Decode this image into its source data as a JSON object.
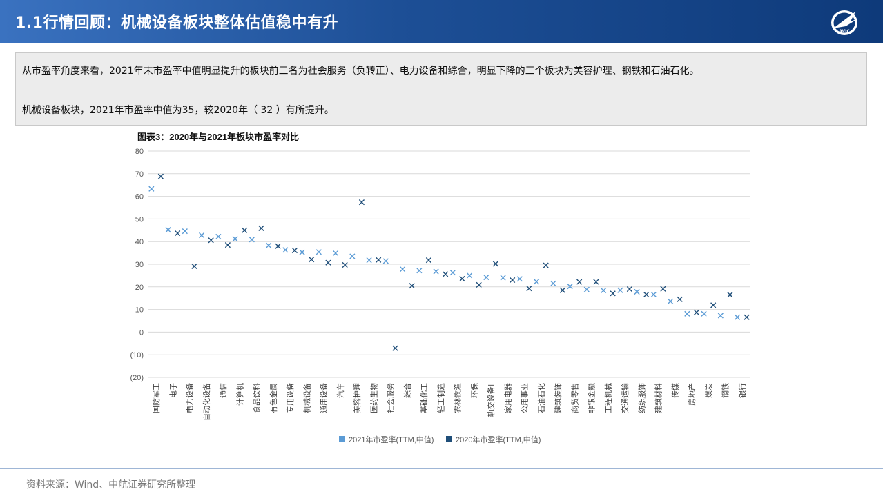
{
  "header": {
    "title": "1.1行情回顾：机械设备板块整体估值稳中有升",
    "logo_icon": "avic-plane-logo-icon",
    "logo_text": "AVIC"
  },
  "summary": {
    "line1": "从市盈率角度来看，2021年末市盈率中值明显提升的板块前三名为社会服务（负转正）、电力设备和综合，明显下降的三个板块为美容护理、钢铁和石油石化。",
    "line2": "机械设备板块，2021年市盈率中值为35，较2020年（ 32 ）有所提升。"
  },
  "chart_data": {
    "type": "scatter",
    "title": "图表3：2020年与2021年板块市盈率对比",
    "ylim": [
      -20,
      80
    ],
    "yticks": [
      "(20)",
      "(10)",
      "0",
      "10",
      "20",
      "30",
      "40",
      "50",
      "60",
      "70",
      "80"
    ],
    "grid": true,
    "legend_position": "bottom",
    "categories": [
      "国防军工",
      "电子",
      "电力设备",
      "自动化设备",
      "通信",
      "计算机",
      "食品饮料",
      "有色金属",
      "专用设备",
      "机械设备",
      "通用设备",
      "汽车",
      "美容护理",
      "医药生物",
      "社会服务",
      "综合",
      "基础化工",
      "轻工制造",
      "农林牧渔",
      "环保",
      "轨交设备Ⅱ",
      "家用电器",
      "公用事业",
      "石油石化",
      "建筑装饰",
      "商贸零售",
      "非银金融",
      "工程机械",
      "交通运输",
      "纺织服饰",
      "建筑材料",
      "传媒",
      "房地产",
      "煤炭",
      "钢铁",
      "银行"
    ],
    "series": [
      {
        "name": "2021年市盈率(TTM,中值)",
        "color": "#5b9bd5",
        "marker": "x",
        "values": [
          63.3,
          45.2,
          44.6,
          42.8,
          42.2,
          41.2,
          40.9,
          38.3,
          36.3,
          35.3,
          35.4,
          34.9,
          33.5,
          31.8,
          31.4,
          27.8,
          27.2,
          26.8,
          26.3,
          25.0,
          24.2,
          24.0,
          23.5,
          22.3,
          21.5,
          20.2,
          18.8,
          18.4,
          18.5,
          17.8,
          16.6,
          13.6,
          8.1,
          8.1,
          7.3,
          6.6
        ]
      },
      {
        "name": "2020年市盈率(TTM,中值)",
        "color": "#1f4e79",
        "marker": "x",
        "values": [
          68.8,
          43.7,
          29.1,
          40.6,
          38.5,
          45.0,
          45.9,
          38.0,
          36.1,
          32.1,
          30.7,
          29.7,
          57.4,
          31.9,
          -7.1,
          20.5,
          31.8,
          25.6,
          23.6,
          20.9,
          30.2,
          23.0,
          19.3,
          29.5,
          18.5,
          22.2,
          22.2,
          17.1,
          19.0,
          16.6,
          19.1,
          14.5,
          8.7,
          11.9,
          16.5,
          6.6
        ]
      }
    ]
  },
  "footer": {
    "source": "资料来源：Wind、中航证券研究所整理"
  }
}
